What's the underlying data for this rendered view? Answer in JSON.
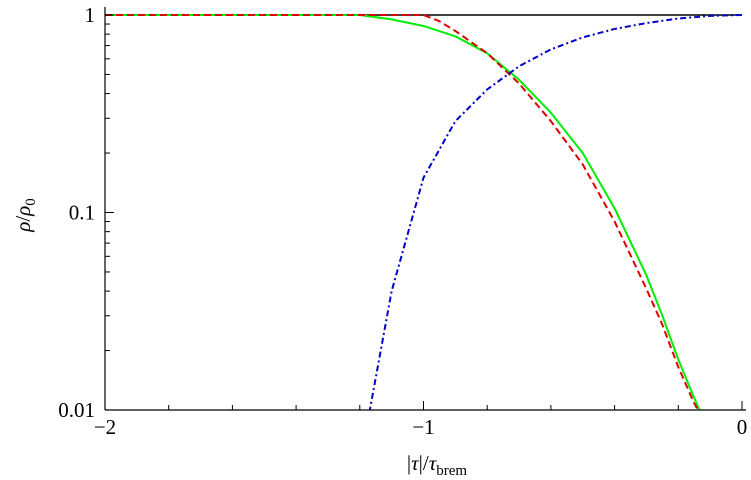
{
  "chart_data": {
    "type": "line",
    "title": "",
    "xlabel": {
      "pre": "|",
      "main": "τ",
      "mid": "|/",
      "main2": "τ",
      "sub": "brem"
    },
    "ylabel": {
      "main": "ρ",
      "mid": "/",
      "main2": "ρ",
      "sub": "0"
    },
    "x_scale": "linear",
    "y_scale": "log",
    "xlim": [
      -2,
      0
    ],
    "ylim": [
      0.01,
      1
    ],
    "x_ticks": [
      {
        "value": -2,
        "label": "−2"
      },
      {
        "value": -1,
        "label": "−1"
      },
      {
        "value": 0,
        "label": "0"
      }
    ],
    "y_ticks": [
      {
        "value": 0.01,
        "label": "0.01"
      },
      {
        "value": 0.1,
        "label": "0.1"
      },
      {
        "value": 1,
        "label": "1"
      }
    ],
    "grid": false,
    "legend": "none",
    "series": [
      {
        "color": "#000000",
        "style": "solid",
        "x": [
          -2,
          0
        ],
        "y": [
          1,
          1
        ]
      },
      {
        "color": "#00ee00",
        "style": "solid",
        "x": [
          -2.0,
          -1.2,
          -1.1,
          -1.0,
          -0.9,
          -0.8,
          -0.7,
          -0.6,
          -0.5,
          -0.4,
          -0.3,
          -0.25,
          -0.2,
          -0.15,
          -0.13
        ],
        "y": [
          1.0,
          1.0,
          0.95,
          0.88,
          0.78,
          0.64,
          0.47,
          0.32,
          0.2,
          0.105,
          0.048,
          0.03,
          0.018,
          0.0115,
          0.0097
        ]
      },
      {
        "color": "#dd0000",
        "style": "dashed",
        "x": [
          -2.0,
          -1.0,
          -0.95,
          -0.9,
          -0.8,
          -0.7,
          -0.6,
          -0.5,
          -0.4,
          -0.3,
          -0.25,
          -0.2,
          -0.15,
          -0.13
        ],
        "y": [
          1.0,
          1.0,
          0.93,
          0.83,
          0.64,
          0.45,
          0.29,
          0.175,
          0.09,
          0.041,
          0.027,
          0.0165,
          0.0108,
          0.0095
        ]
      },
      {
        "color": "#0000cc",
        "style": "dashdot",
        "x": [
          -1.17,
          -1.1,
          -1.0,
          -0.9,
          -0.8,
          -0.7,
          -0.6,
          -0.5,
          -0.4,
          -0.3,
          -0.2,
          -0.1,
          0.0
        ],
        "y": [
          0.0097,
          0.04,
          0.15,
          0.29,
          0.42,
          0.55,
          0.67,
          0.77,
          0.85,
          0.91,
          0.96,
          0.99,
          1.0
        ]
      }
    ]
  }
}
